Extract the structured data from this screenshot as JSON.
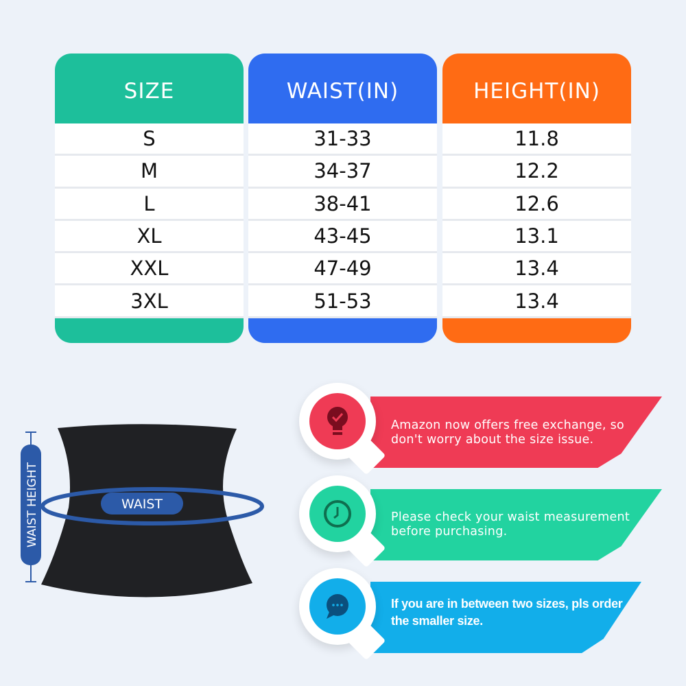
{
  "colors": {
    "size": "#1dbf9b",
    "waist": "#2f6cf0",
    "height": "#ff6b14",
    "tip_red": "#ef3b55",
    "tip_green": "#22d3a0",
    "tip_blue": "#12aeea",
    "measure_blue": "#2c5aa8"
  },
  "table": {
    "headers": [
      "SIZE",
      "WAIST(IN)",
      "HEIGHT(IN)"
    ],
    "rows": [
      [
        "S",
        "31-33",
        "11.8"
      ],
      [
        "M",
        "34-37",
        "12.2"
      ],
      [
        "L",
        "38-41",
        "12.6"
      ],
      [
        "XL",
        "43-45",
        "13.1"
      ],
      [
        "XXL",
        "47-49",
        "13.4"
      ],
      [
        "3XL",
        "51-53",
        "13.4"
      ]
    ]
  },
  "diagram": {
    "waist_label": "WAIST",
    "waist_height_label": "WAIST HEIGHT"
  },
  "tips": [
    {
      "icon": "lightbulb-check-icon",
      "text": "Amazon now offers free exchange, so don't worry about the size issue."
    },
    {
      "icon": "clock-icon",
      "text": "Please check your waist measurement before purchasing."
    },
    {
      "icon": "chat-bubble-icon",
      "text": "If you are in between two sizes, pls order the smaller size."
    }
  ]
}
